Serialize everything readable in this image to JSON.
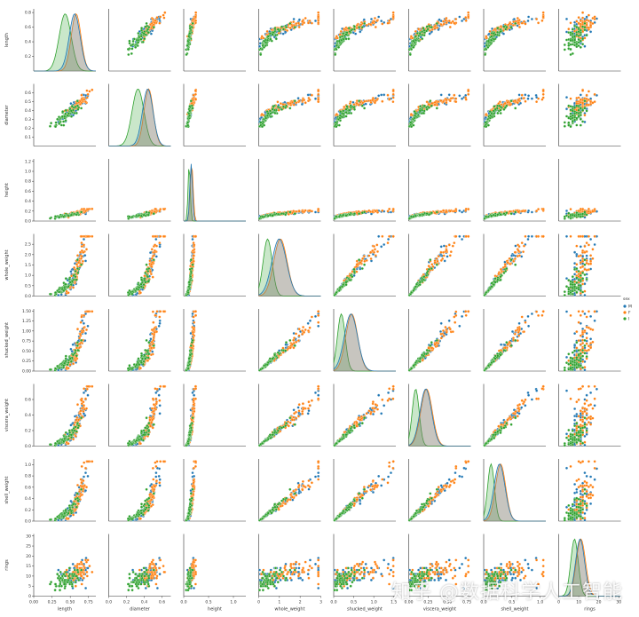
{
  "chart_data": {
    "type": "scatter",
    "variables": [
      "length",
      "diameter",
      "height",
      "whole_weight",
      "shucked_weight",
      "viscera_weight",
      "shell_weight",
      "rings"
    ],
    "ranges": {
      "length": [
        0.0,
        0.85
      ],
      "diameter": [
        0.0,
        0.7
      ],
      "height": [
        0.0,
        1.25
      ],
      "whole_weight": [
        0.0,
        3.0
      ],
      "shucked_weight": [
        0.0,
        1.55
      ],
      "viscera_weight": [
        0.0,
        0.8
      ],
      "shell_weight": [
        0.0,
        1.1
      ],
      "rings": [
        0,
        31
      ]
    },
    "ticks": {
      "length": [
        0.0,
        0.25,
        0.5,
        0.75
      ],
      "length_y": [
        0.2,
        0.4,
        0.6,
        0.8
      ],
      "diameter": [
        0.0,
        0.2,
        0.4,
        0.6
      ],
      "diameter_y": [
        0.1,
        0.2,
        0.3,
        0.4,
        0.5,
        0.6
      ],
      "height": [
        0.0,
        0.5,
        1.0
      ],
      "height_y": [
        0.0,
        0.2,
        0.4,
        0.6,
        0.8,
        1.0,
        1.2
      ],
      "whole_weight": [
        0,
        1,
        2,
        3
      ],
      "whole_weight_y": [
        0.0,
        0.5,
        1.0,
        1.5,
        2.0,
        2.5
      ],
      "shucked_weight": [
        0.0,
        0.5,
        1.0,
        1.5
      ],
      "shucked_weight_y": [
        0.0,
        0.25,
        0.5,
        0.75,
        1.0,
        1.25,
        1.5
      ],
      "viscera_weight": [
        0.0,
        0.25,
        0.5,
        0.75
      ],
      "viscera_weight_y": [
        0.0,
        0.2,
        0.4,
        0.6
      ],
      "shell_weight": [
        0.0,
        0.5,
        1.0
      ],
      "shell_weight_y": [
        0.0,
        0.2,
        0.4,
        0.6,
        0.8,
        1.0
      ],
      "rings": [
        0,
        10,
        20,
        30
      ],
      "rings_y": [
        0,
        5,
        10,
        15,
        20,
        25,
        30
      ]
    },
    "tick_labels": {
      "length": [
        "0.00",
        "0.25",
        "0.50",
        "0.75"
      ],
      "length_y": [
        "0.2",
        "0.4",
        "0.6",
        "0.8"
      ],
      "diameter": [
        "0.0",
        "0.2",
        "0.4",
        "0.6"
      ],
      "diameter_y": [
        "0.1",
        "0.2",
        "0.3",
        "0.4",
        "0.5",
        "0.6"
      ],
      "height": [
        "0.0",
        "0.5",
        "1.0"
      ],
      "height_y": [
        "0.0",
        "0.2",
        "0.4",
        "0.6",
        "0.8",
        "1.0",
        "1.2"
      ],
      "whole_weight": [
        "0",
        "1",
        "2",
        "3"
      ],
      "whole_weight_y": [
        "0.0",
        "0.5",
        "1.0",
        "1.5",
        "2.0",
        "2.5"
      ],
      "shucked_weight": [
        "0.0",
        "0.5",
        "1.0",
        "1.5"
      ],
      "shucked_weight_y": [
        "0.00",
        "0.25",
        "0.50",
        "0.75",
        "1.00",
        "1.25",
        "1.50"
      ],
      "viscera_weight": [
        "0.00",
        "0.25",
        "0.50",
        "0.75"
      ],
      "viscera_weight_y": [
        "0.0",
        "0.2",
        "0.4",
        "0.6"
      ],
      "shell_weight": [
        "0.0",
        "0.5",
        "1.0"
      ],
      "shell_weight_y": [
        "0.0",
        "0.2",
        "0.4",
        "0.6",
        "0.8",
        "1.0"
      ],
      "rings": [
        "0",
        "10",
        "20",
        "30"
      ],
      "rings_y": [
        "0",
        "5",
        "10",
        "15",
        "20",
        "25",
        "30"
      ]
    },
    "series": [
      {
        "name": "M",
        "color": "#1f77b4",
        "means": {
          "length": 0.56,
          "diameter": 0.44,
          "height": 0.15,
          "whole_weight": 0.99,
          "shucked_weight": 0.43,
          "viscera_weight": 0.22,
          "shell_weight": 0.28,
          "rings": 10.7
        },
        "sds": {
          "length": 0.1,
          "diameter": 0.08,
          "height": 0.035,
          "whole_weight": 0.47,
          "shucked_weight": 0.22,
          "viscera_weight": 0.1,
          "shell_weight": 0.13,
          "rings": 3.0
        }
      },
      {
        "name": "F",
        "color": "#ff7f0e",
        "means": {
          "length": 0.58,
          "diameter": 0.45,
          "height": 0.16,
          "whole_weight": 1.05,
          "shucked_weight": 0.45,
          "viscera_weight": 0.23,
          "shell_weight": 0.3,
          "rings": 11.1
        },
        "sds": {
          "length": 0.09,
          "diameter": 0.07,
          "height": 0.04,
          "whole_weight": 0.43,
          "shucked_weight": 0.2,
          "viscera_weight": 0.1,
          "shell_weight": 0.12,
          "rings": 3.1
        }
      },
      {
        "name": "I",
        "color": "#2ca02c",
        "means": {
          "length": 0.43,
          "diameter": 0.33,
          "height": 0.11,
          "whole_weight": 0.43,
          "shucked_weight": 0.19,
          "viscera_weight": 0.09,
          "shell_weight": 0.13,
          "rings": 7.9
        },
        "sds": {
          "length": 0.11,
          "diameter": 0.09,
          "height": 0.03,
          "whole_weight": 0.29,
          "shucked_weight": 0.13,
          "viscera_weight": 0.06,
          "shell_weight": 0.08,
          "rings": 2.5
        }
      }
    ],
    "legend": {
      "title": "sex",
      "labels": [
        "M",
        "F",
        "I"
      ],
      "placement": "right"
    },
    "diagonal": "kde",
    "grid": false
  },
  "watermark": "知乎 @数据科学人工智能"
}
